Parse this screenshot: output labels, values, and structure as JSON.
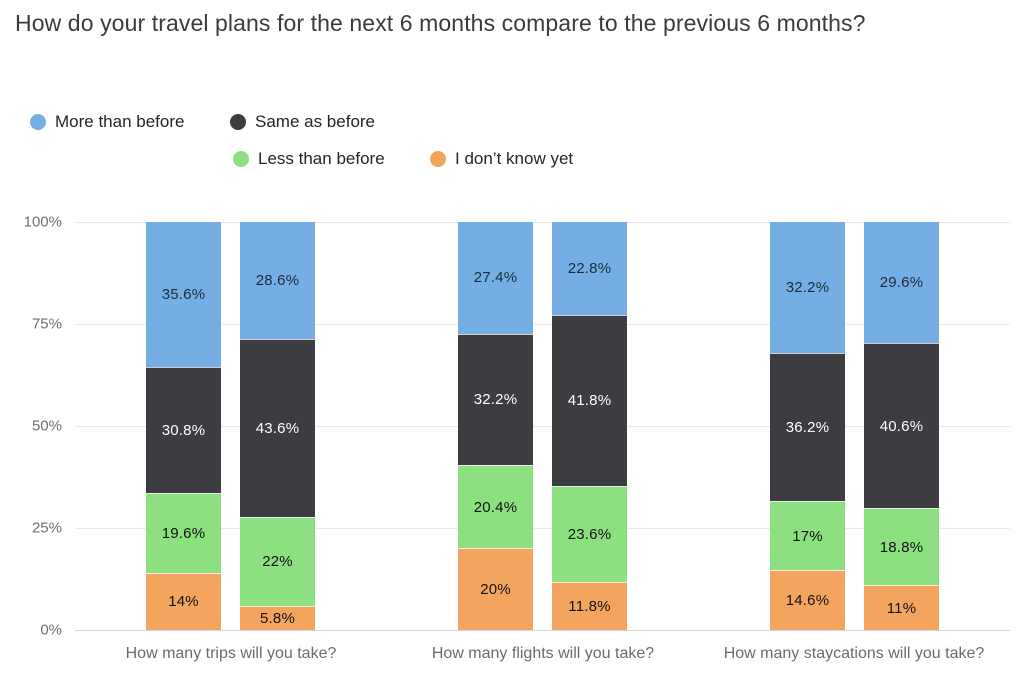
{
  "title": "How do your travel plans for the next 6 months compare to the previous 6 months?",
  "legend": {
    "items": [
      {
        "label": "More than before",
        "color": "#75aee5",
        "row": 1
      },
      {
        "label": "Same as before",
        "color": "#3d3c41",
        "row": 1
      },
      {
        "label": "Less than before",
        "color": "#8ce07f",
        "row": 2
      },
      {
        "label": "I don’t know yet",
        "color": "#f3a55f",
        "row": 2
      }
    ]
  },
  "chart_data": {
    "type": "bar",
    "stacked": true,
    "orientation": "vertical",
    "bars_per_category": 2,
    "categories": [
      "How many trips will you take?",
      "How many flights will you take?",
      "How many staycations will you take?"
    ],
    "series": [
      {
        "name": "More than before",
        "color": "#75aee5",
        "label_color": "#1c2b39",
        "values": [
          35.6,
          28.6,
          27.4,
          22.8,
          32.2,
          29.6
        ]
      },
      {
        "name": "Same as before",
        "color": "#3d3c41",
        "label_color": "#ffffff",
        "values": [
          30.8,
          43.6,
          32.2,
          41.8,
          36.2,
          40.6
        ]
      },
      {
        "name": "Less than before",
        "color": "#8ce07f",
        "label_color": "#111111",
        "values": [
          19.6,
          22.0,
          20.4,
          23.6,
          17.0,
          18.8
        ]
      },
      {
        "name": "I don’t know yet",
        "color": "#f3a55f",
        "label_color": "#111111",
        "values": [
          14.0,
          5.8,
          20.0,
          11.8,
          14.6,
          11.0
        ]
      }
    ],
    "value_suffix": "%",
    "data_labels_shown": true,
    "ylabel": "",
    "xlabel": "",
    "ylim": [
      0,
      100
    ],
    "yticks": [
      "0%",
      "25%",
      "50%",
      "75%",
      "100%"
    ],
    "grid": "horizontal-only",
    "legend_position": "top-left-two-rows"
  }
}
